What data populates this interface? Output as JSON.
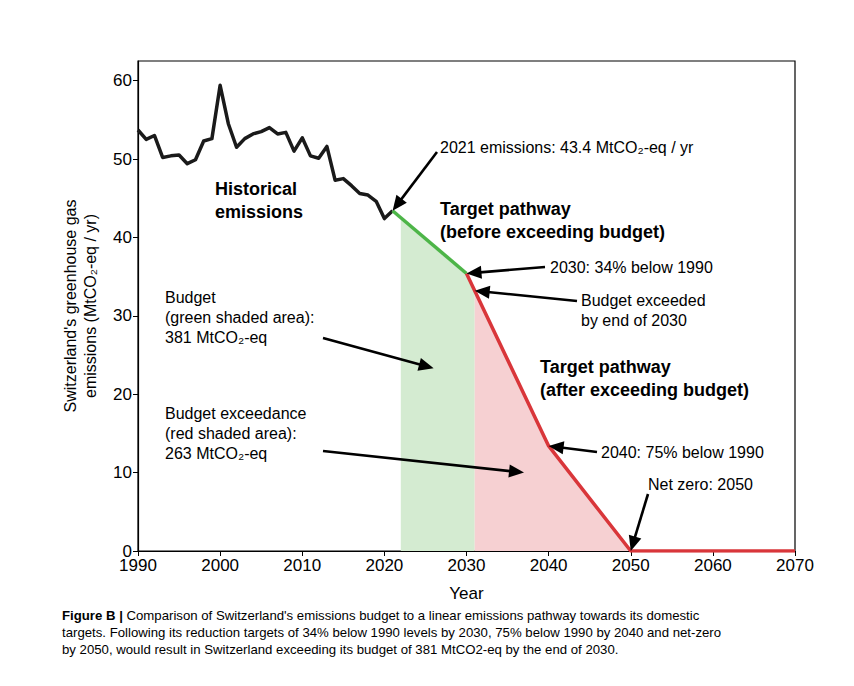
{
  "chart_data": {
    "type": "line",
    "x_label": "Year",
    "y_label": "Switzerland's greenhouse gas\nemissions (MtCO₂-eq / yr)",
    "xlim": [
      1990,
      2070
    ],
    "xticks": [
      1990,
      2000,
      2010,
      2020,
      2030,
      2040,
      2050,
      2060,
      2070
    ],
    "ylim": [
      0,
      62.5
    ],
    "yticks": [
      0,
      10,
      20,
      30,
      40,
      50,
      60
    ],
    "grid": false,
    "series": [
      {
        "type": "area",
        "color": "#d4ebd1",
        "x": [
          2022,
          2030,
          2031
        ],
        "values": [
          42.5,
          35.4,
          33.2
        ]
      },
      {
        "type": "area",
        "color": "#f6d0d2",
        "x": [
          2031,
          2040,
          2050
        ],
        "values": [
          33.2,
          13.4,
          0
        ]
      },
      {
        "type": "line",
        "color": "#1a1a1a",
        "x": [
          1990,
          1991,
          1992,
          1993,
          1994,
          1995,
          1996,
          1997,
          1998,
          1999,
          2000,
          2001,
          2002,
          2003,
          2004,
          2005,
          2006,
          2007,
          2008,
          2009,
          2010,
          2011,
          2012,
          2013,
          2014,
          2015,
          2016,
          2017,
          2018,
          2019,
          2020,
          2021
        ],
        "values": [
          53.7,
          52.5,
          53.0,
          50.2,
          50.4,
          50.5,
          49.4,
          49.9,
          52.3,
          52.6,
          59.4,
          54.5,
          51.5,
          52.6,
          53.2,
          53.5,
          54.0,
          53.2,
          53.4,
          51.0,
          52.7,
          50.4,
          50.1,
          51.6,
          47.3,
          47.5,
          46.6,
          45.6,
          45.4,
          44.6,
          42.4,
          43.4
        ]
      },
      {
        "type": "line",
        "color": "#4db548",
        "x": [
          2021,
          2030
        ],
        "values": [
          43.4,
          35.4
        ]
      },
      {
        "type": "line",
        "color": "#d9363a",
        "x": [
          2030,
          2040,
          2050,
          2070
        ],
        "values": [
          35.4,
          13.4,
          0,
          0
        ]
      }
    ],
    "annotations": [
      {
        "text": "Historical\nemissions"
      },
      {
        "text": "2021 emissions: 43.4 MtCO₂-eq / yr",
        "point": [
          2021,
          43.4
        ]
      },
      {
        "text": "Target pathway\n(before exceeding budget)"
      },
      {
        "text": "2030: 34% below 1990",
        "point": [
          2030,
          35.4
        ]
      },
      {
        "text": "Budget exceeded\nby end of 2030",
        "point": [
          2031,
          33.2
        ]
      },
      {
        "text": "Target pathway\n(after exceeding budget)"
      },
      {
        "text": "2040: 75% below 1990",
        "point": [
          2040,
          13.4
        ]
      },
      {
        "text": "Net zero: 2050",
        "point": [
          2050,
          0
        ]
      },
      {
        "text": "Budget\n(green shaded area):\n381 MtCO₂-eq",
        "point": [
          2026,
          23.3
        ]
      },
      {
        "text": "Budget exceedance\n(red shaded area):\n263 MtCO₂-eq",
        "point": [
          2037,
          10
        ]
      }
    ],
    "caption": "Figure B | Comparison of Switzerland's emissions budget to a linear emissions pathway towards its domestic\ntargets. Following its reduction targets of 34% below 1990 levels by 2030, 75% below 1990 by 2040 and net-zero\nby 2050, would result in Switzerland exceeding its budget of 381 MtCO2-eq by the end of 2030."
  }
}
